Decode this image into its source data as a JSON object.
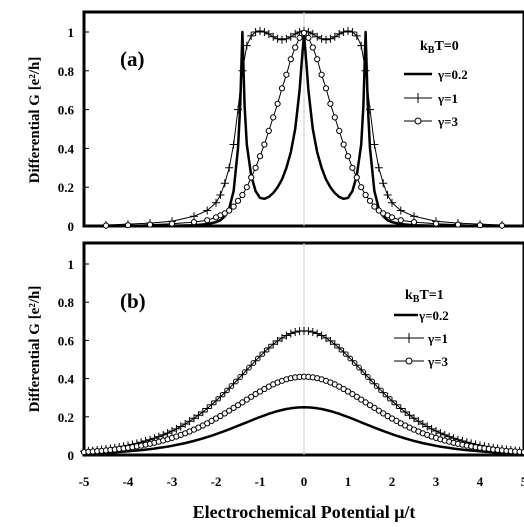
{
  "chart_data": [
    {
      "type": "line",
      "panel_label": "(a)",
      "annotation": {
        "k": "k",
        "sub": "B",
        "rest": "T=0"
      },
      "ylabel": "Differential  G [e²/h]",
      "xlim": [
        -5,
        5
      ],
      "ylim": [
        0,
        1
      ],
      "yticks": [
        "0",
        "0.2",
        "0.4",
        "0.6",
        "0.8",
        "1"
      ],
      "legend_position": "right",
      "series": [
        {
          "name": "γ=0.2",
          "marker": "none",
          "x": [
            -5.2,
            -4,
            -3,
            -2.5,
            -2.2,
            -2,
            -1.9,
            -1.8,
            -1.7,
            -1.6,
            -1.5,
            -1.45,
            -1.4,
            -1.35,
            -1.3,
            -1.2,
            -1.1,
            -1.0,
            -0.9,
            -0.8,
            -0.7,
            -0.6,
            -0.5,
            -0.4,
            -0.3,
            -0.2,
            -0.1,
            -0.05,
            0,
            0.05,
            0.1,
            0.2,
            0.3,
            0.4,
            0.5,
            0.6,
            0.7,
            0.8,
            0.9,
            1.0,
            1.1,
            1.2,
            1.3,
            1.35,
            1.4,
            1.45,
            1.5,
            1.6,
            1.7,
            1.8,
            1.9,
            2,
            2.2,
            2.5,
            3,
            4,
            5.2
          ],
          "y": [
            0,
            0,
            0.001,
            0.004,
            0.01,
            0.02,
            0.03,
            0.05,
            0.09,
            0.18,
            0.4,
            0.62,
            1.0,
            0.62,
            0.42,
            0.26,
            0.18,
            0.145,
            0.14,
            0.15,
            0.17,
            0.2,
            0.24,
            0.3,
            0.38,
            0.5,
            0.7,
            0.85,
            0.99,
            0.85,
            0.7,
            0.5,
            0.38,
            0.3,
            0.24,
            0.2,
            0.17,
            0.15,
            0.14,
            0.145,
            0.18,
            0.26,
            0.42,
            0.62,
            1.0,
            0.62,
            0.4,
            0.18,
            0.09,
            0.05,
            0.03,
            0.02,
            0.01,
            0.004,
            0.001,
            0,
            0
          ]
        },
        {
          "name": "γ=1",
          "marker": "plus",
          "x": [
            -5.2,
            -4.5,
            -4,
            -3.5,
            -3,
            -2.5,
            -2.2,
            -2,
            -1.9,
            -1.8,
            -1.7,
            -1.6,
            -1.5,
            -1.4,
            -1.3,
            -1.2,
            -1.1,
            -1,
            -0.9,
            -0.8,
            -0.7,
            -0.6,
            -0.5,
            -0.4,
            -0.3,
            -0.2,
            -0.1,
            0,
            0.1,
            0.2,
            0.3,
            0.4,
            0.5,
            0.6,
            0.7,
            0.8,
            0.9,
            1,
            1.1,
            1.2,
            1.3,
            1.4,
            1.5,
            1.6,
            1.7,
            1.8,
            1.9,
            2,
            2.2,
            2.5,
            3,
            3.5,
            4,
            4.5,
            5.2
          ],
          "y": [
            0.003,
            0.005,
            0.01,
            0.015,
            0.025,
            0.05,
            0.08,
            0.12,
            0.16,
            0.22,
            0.3,
            0.42,
            0.6,
            0.8,
            0.93,
            0.98,
            1.0,
            1.005,
            1.0,
            0.99,
            0.975,
            0.965,
            0.96,
            0.965,
            0.975,
            0.99,
            1.0,
            1.005,
            1.0,
            0.99,
            0.975,
            0.965,
            0.96,
            0.965,
            0.975,
            0.99,
            1.0,
            1.005,
            1.0,
            0.98,
            0.93,
            0.8,
            0.6,
            0.42,
            0.3,
            0.22,
            0.16,
            0.12,
            0.08,
            0.05,
            0.025,
            0.015,
            0.01,
            0.005,
            0.003
          ]
        },
        {
          "name": "γ=3",
          "marker": "circle",
          "x": [
            -5.2,
            -4.5,
            -4,
            -3.5,
            -3,
            -2.5,
            -2.2,
            -2,
            -1.9,
            -1.8,
            -1.7,
            -1.6,
            -1.5,
            -1.4,
            -1.3,
            -1.2,
            -1.1,
            -1,
            -0.9,
            -0.8,
            -0.7,
            -0.6,
            -0.5,
            -0.4,
            -0.3,
            -0.2,
            -0.1,
            0,
            0.1,
            0.2,
            0.3,
            0.4,
            0.5,
            0.6,
            0.7,
            0.8,
            0.9,
            1,
            1.1,
            1.2,
            1.3,
            1.4,
            1.5,
            1.6,
            1.7,
            1.8,
            1.9,
            2,
            2.2,
            2.5,
            3,
            3.5,
            4,
            4.5,
            5.2
          ],
          "y": [
            0.001,
            0.002,
            0.004,
            0.007,
            0.012,
            0.02,
            0.03,
            0.045,
            0.055,
            0.065,
            0.08,
            0.1,
            0.13,
            0.16,
            0.2,
            0.25,
            0.3,
            0.36,
            0.42,
            0.49,
            0.56,
            0.63,
            0.71,
            0.78,
            0.86,
            0.92,
            0.97,
            0.995,
            0.97,
            0.92,
            0.86,
            0.78,
            0.71,
            0.63,
            0.56,
            0.49,
            0.42,
            0.36,
            0.3,
            0.25,
            0.2,
            0.16,
            0.13,
            0.1,
            0.08,
            0.065,
            0.055,
            0.045,
            0.03,
            0.02,
            0.012,
            0.007,
            0.004,
            0.002,
            0.001
          ]
        }
      ]
    },
    {
      "type": "line",
      "panel_label": "(b)",
      "annotation": {
        "k": "k",
        "sub": "B",
        "rest": "T=1"
      },
      "ylabel": "Differential  G [e²/h]",
      "xlim": [
        -5,
        5
      ],
      "ylim": [
        0,
        1
      ],
      "yticks": [
        "0",
        "0.2",
        "0.4",
        "0.6",
        "0.8",
        "1"
      ],
      "xticks": [
        "-5",
        "-4",
        "-3",
        "-2",
        "-1",
        "0",
        "1",
        "2",
        "3",
        "4",
        "5"
      ],
      "xlabel": "Electrochemical Potential  μ/t",
      "legend_position": "right",
      "series": [
        {
          "name": "γ=0.2",
          "marker": "none",
          "peak": 0.25,
          "width": 2.05
        },
        {
          "name": "γ=1",
          "marker": "plus",
          "peak": 0.65,
          "width": 2.05
        },
        {
          "name": "γ=3",
          "marker": "circle",
          "peak": 0.41,
          "width": 2.15
        }
      ]
    }
  ]
}
